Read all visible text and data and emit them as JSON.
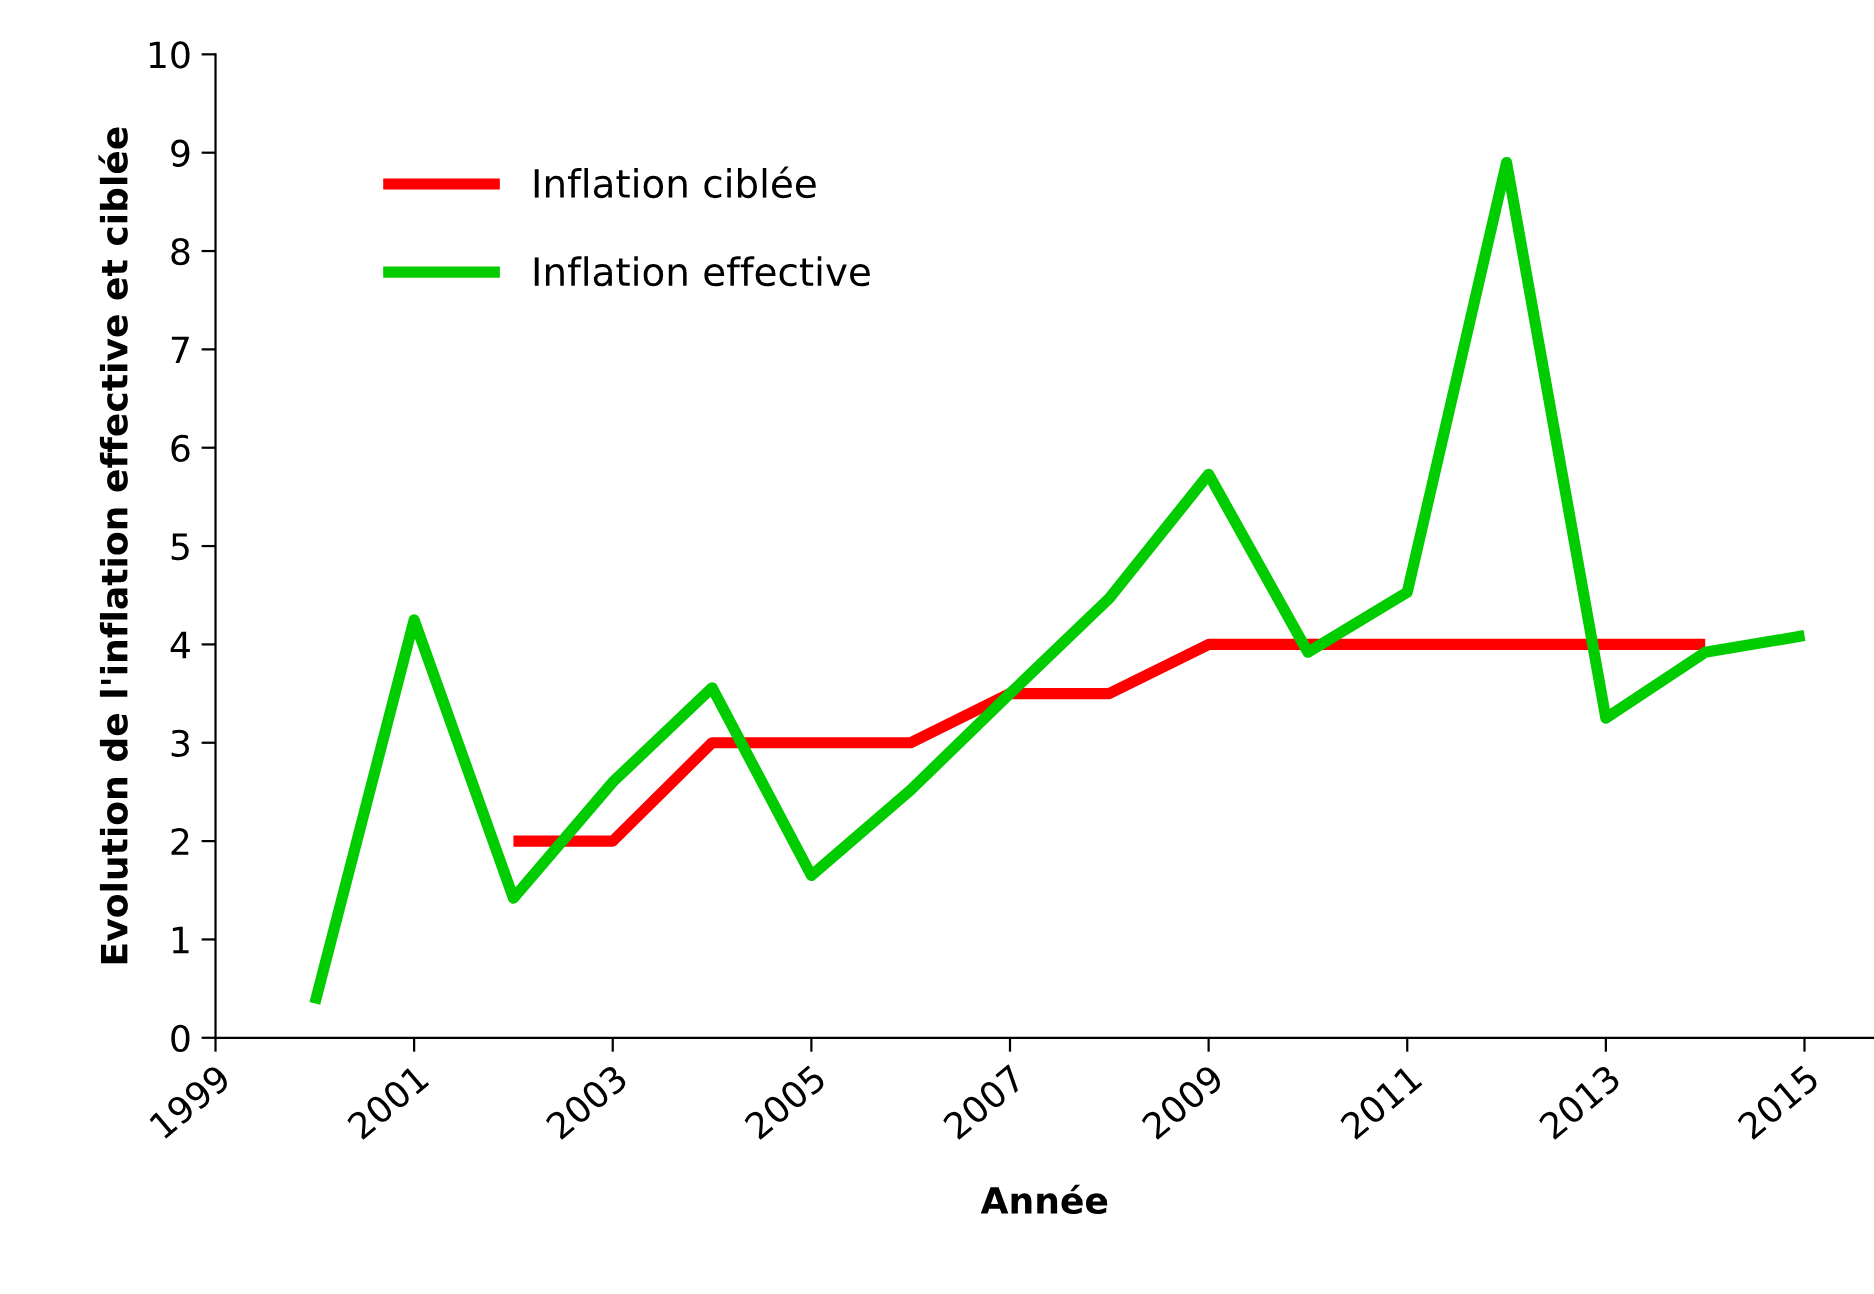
{
  "chart_data": {
    "type": "line",
    "xlabel": "Année",
    "ylabel": "Evolution de l'inflation effective et ciblée",
    "series": [
      {
        "name": "Inflation ciblée",
        "color": "#ff0000",
        "x": [
          2002,
          2003,
          2004,
          2005,
          2006,
          2007,
          2008,
          2009,
          2010,
          2011,
          2012,
          2013,
          2014
        ],
        "values": [
          2,
          2,
          3,
          3,
          3,
          3.5,
          3.5,
          4,
          4,
          4,
          4,
          4,
          4
        ]
      },
      {
        "name": "Inflation effective",
        "color": "#00cc00",
        "x": [
          2000,
          2001,
          2002,
          2003,
          2004,
          2005,
          2006,
          2007,
          2008,
          2009,
          2010,
          2011,
          2012,
          2013,
          2014,
          2015
        ],
        "values": [
          0.35,
          4.25,
          1.42,
          2.6,
          3.56,
          1.65,
          2.52,
          3.5,
          4.47,
          5.73,
          3.92,
          4.53,
          8.9,
          3.25,
          3.92,
          4.09
        ]
      }
    ],
    "xlim": [
      1999,
      2015.7
    ],
    "xticks": [
      1999,
      2001,
      2003,
      2005,
      2007,
      2009,
      2011,
      2013,
      2015
    ],
    "ylim": [
      0,
      10
    ],
    "yticks": [
      0,
      1,
      2,
      3,
      4,
      5,
      6,
      7,
      8,
      9,
      10
    ],
    "grid": false,
    "legend": "top left",
    "marker": "none",
    "line_style": "solid"
  }
}
